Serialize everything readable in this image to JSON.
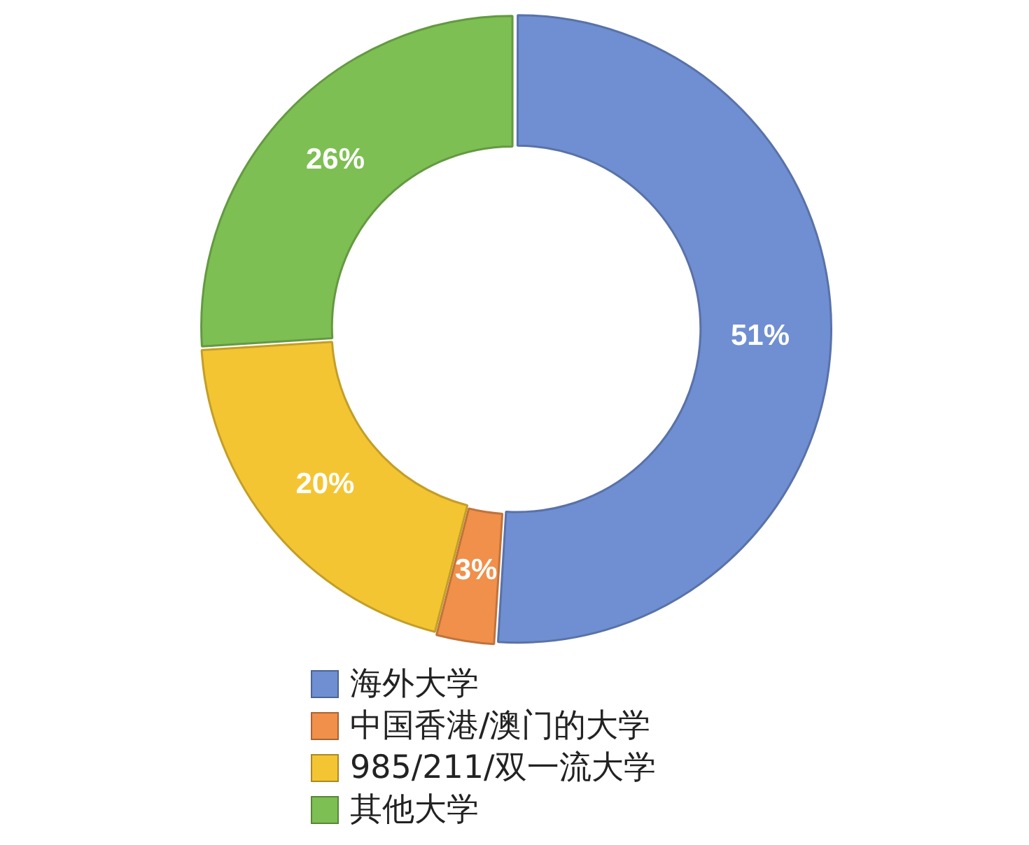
{
  "chart_data": {
    "type": "donut",
    "categories": [
      "海外大学",
      "中国香港/澳门的大学",
      "985/211/双一流大学",
      "其他大学"
    ],
    "values": [
      51,
      3,
      20,
      26
    ],
    "value_labels": [
      "51%",
      "3%",
      "20%",
      "26%"
    ],
    "colors": [
      "#6f8fd2",
      "#f0904a",
      "#f4c532",
      "#7dbf52"
    ],
    "legend": "bottom"
  }
}
